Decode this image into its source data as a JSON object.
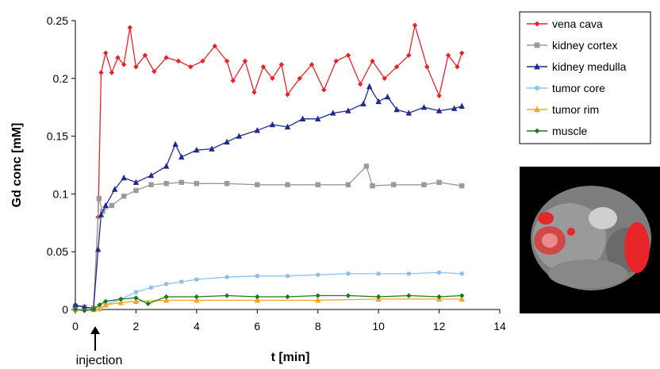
{
  "chart_data": {
    "type": "line",
    "title": "",
    "xlabel": "t [min]",
    "ylabel": "Gd conc [mM]",
    "xlim": [
      0,
      14
    ],
    "ylim": [
      0,
      0.25
    ],
    "xticks": [
      "0",
      "2",
      "4",
      "6",
      "8",
      "10",
      "12",
      "14"
    ],
    "yticks": [
      "0",
      "0.05",
      "0.1",
      "0.15",
      "0.2",
      "0.25"
    ],
    "grid": false,
    "legend_position": "top-right",
    "annotations": [
      {
        "text": "injection",
        "x": 0.7
      }
    ],
    "inset": "MRI cross-section with red highlighted regions",
    "series": [
      {
        "name": "vena cava",
        "color": "#e8222a",
        "marker": "diamond",
        "points": [
          [
            0.0,
            0.0
          ],
          [
            0.3,
            0.0
          ],
          [
            0.6,
            0.0
          ],
          [
            0.75,
            0.08
          ],
          [
            0.85,
            0.205
          ],
          [
            1.0,
            0.222
          ],
          [
            1.2,
            0.205
          ],
          [
            1.4,
            0.218
          ],
          [
            1.6,
            0.212
          ],
          [
            1.8,
            0.244
          ],
          [
            2.0,
            0.21
          ],
          [
            2.3,
            0.22
          ],
          [
            2.6,
            0.206
          ],
          [
            3.0,
            0.218
          ],
          [
            3.4,
            0.215
          ],
          [
            3.8,
            0.21
          ],
          [
            4.2,
            0.215
          ],
          [
            4.6,
            0.228
          ],
          [
            5.0,
            0.215
          ],
          [
            5.2,
            0.198
          ],
          [
            5.6,
            0.215
          ],
          [
            5.9,
            0.188
          ],
          [
            6.2,
            0.21
          ],
          [
            6.5,
            0.2
          ],
          [
            6.8,
            0.212
          ],
          [
            7.0,
            0.186
          ],
          [
            7.4,
            0.2
          ],
          [
            7.8,
            0.212
          ],
          [
            8.2,
            0.19
          ],
          [
            8.6,
            0.215
          ],
          [
            9.0,
            0.22
          ],
          [
            9.4,
            0.195
          ],
          [
            9.8,
            0.215
          ],
          [
            10.2,
            0.2
          ],
          [
            10.6,
            0.21
          ],
          [
            11.0,
            0.22
          ],
          [
            11.2,
            0.246
          ],
          [
            11.6,
            0.21
          ],
          [
            12.0,
            0.185
          ],
          [
            12.3,
            0.22
          ],
          [
            12.6,
            0.21
          ],
          [
            12.75,
            0.222
          ]
        ]
      },
      {
        "name": "kidney cortex",
        "color": "#9a9a9a",
        "marker": "square",
        "points": [
          [
            0.0,
            0.003
          ],
          [
            0.3,
            0.002
          ],
          [
            0.6,
            0.001
          ],
          [
            0.78,
            0.096
          ],
          [
            0.9,
            0.085
          ],
          [
            1.2,
            0.09
          ],
          [
            1.6,
            0.098
          ],
          [
            2.0,
            0.103
          ],
          [
            2.5,
            0.108
          ],
          [
            3.0,
            0.109
          ],
          [
            3.5,
            0.11
          ],
          [
            4.0,
            0.109
          ],
          [
            5.0,
            0.109
          ],
          [
            6.0,
            0.108
          ],
          [
            7.0,
            0.108
          ],
          [
            8.0,
            0.108
          ],
          [
            9.0,
            0.108
          ],
          [
            9.6,
            0.124
          ],
          [
            9.8,
            0.107
          ],
          [
            10.5,
            0.108
          ],
          [
            11.5,
            0.108
          ],
          [
            12.0,
            0.11
          ],
          [
            12.75,
            0.107
          ]
        ]
      },
      {
        "name": "kidney medulla",
        "color": "#1f2a8c",
        "marker": "triangle",
        "points": [
          [
            0.0,
            0.004
          ],
          [
            0.3,
            0.002
          ],
          [
            0.6,
            0.001
          ],
          [
            0.75,
            0.052
          ],
          [
            0.85,
            0.082
          ],
          [
            1.0,
            0.09
          ],
          [
            1.3,
            0.104
          ],
          [
            1.6,
            0.114
          ],
          [
            2.0,
            0.11
          ],
          [
            2.5,
            0.116
          ],
          [
            3.0,
            0.124
          ],
          [
            3.3,
            0.143
          ],
          [
            3.5,
            0.132
          ],
          [
            4.0,
            0.138
          ],
          [
            4.5,
            0.139
          ],
          [
            5.0,
            0.145
          ],
          [
            5.4,
            0.15
          ],
          [
            6.0,
            0.155
          ],
          [
            6.5,
            0.16
          ],
          [
            7.0,
            0.158
          ],
          [
            7.5,
            0.165
          ],
          [
            8.0,
            0.165
          ],
          [
            8.5,
            0.17
          ],
          [
            9.0,
            0.172
          ],
          [
            9.5,
            0.178
          ],
          [
            9.7,
            0.193
          ],
          [
            10.0,
            0.18
          ],
          [
            10.3,
            0.184
          ],
          [
            10.6,
            0.173
          ],
          [
            11.0,
            0.17
          ],
          [
            11.5,
            0.175
          ],
          [
            12.0,
            0.172
          ],
          [
            12.5,
            0.174
          ],
          [
            12.75,
            0.176
          ]
        ]
      },
      {
        "name": "tumor core",
        "color": "#8ec2ee",
        "marker": "circle",
        "points": [
          [
            0.0,
            0.0
          ],
          [
            0.6,
            0.0
          ],
          [
            0.8,
            0.0
          ],
          [
            1.0,
            0.004
          ],
          [
            1.5,
            0.009
          ],
          [
            2.0,
            0.015
          ],
          [
            2.5,
            0.019
          ],
          [
            3.0,
            0.022
          ],
          [
            3.5,
            0.024
          ],
          [
            4.0,
            0.026
          ],
          [
            5.0,
            0.028
          ],
          [
            6.0,
            0.029
          ],
          [
            7.0,
            0.029
          ],
          [
            8.0,
            0.03
          ],
          [
            9.0,
            0.031
          ],
          [
            10.0,
            0.031
          ],
          [
            11.0,
            0.031
          ],
          [
            12.0,
            0.032
          ],
          [
            12.75,
            0.031
          ]
        ]
      },
      {
        "name": "tumor rim",
        "color": "#f5a623",
        "marker": "triangle",
        "points": [
          [
            0.0,
            0.0
          ],
          [
            0.6,
            0.0
          ],
          [
            0.8,
            0.001
          ],
          [
            1.0,
            0.004
          ],
          [
            1.5,
            0.006
          ],
          [
            2.0,
            0.007
          ],
          [
            3.0,
            0.008
          ],
          [
            4.0,
            0.008
          ],
          [
            6.0,
            0.008
          ],
          [
            8.0,
            0.008
          ],
          [
            10.0,
            0.009
          ],
          [
            12.0,
            0.009
          ],
          [
            12.75,
            0.009
          ]
        ]
      },
      {
        "name": "muscle",
        "color": "#1c7a1c",
        "marker": "diamond",
        "points": [
          [
            0.0,
            0.0
          ],
          [
            0.3,
            -0.001
          ],
          [
            0.6,
            0.0
          ],
          [
            0.8,
            0.004
          ],
          [
            1.0,
            0.007
          ],
          [
            1.5,
            0.009
          ],
          [
            2.0,
            0.01
          ],
          [
            2.4,
            0.005
          ],
          [
            3.0,
            0.011
          ],
          [
            4.0,
            0.011
          ],
          [
            5.0,
            0.012
          ],
          [
            6.0,
            0.011
          ],
          [
            7.0,
            0.011
          ],
          [
            8.0,
            0.012
          ],
          [
            9.0,
            0.012
          ],
          [
            10.0,
            0.011
          ],
          [
            11.0,
            0.012
          ],
          [
            12.0,
            0.011
          ],
          [
            12.75,
            0.012
          ]
        ]
      }
    ]
  }
}
